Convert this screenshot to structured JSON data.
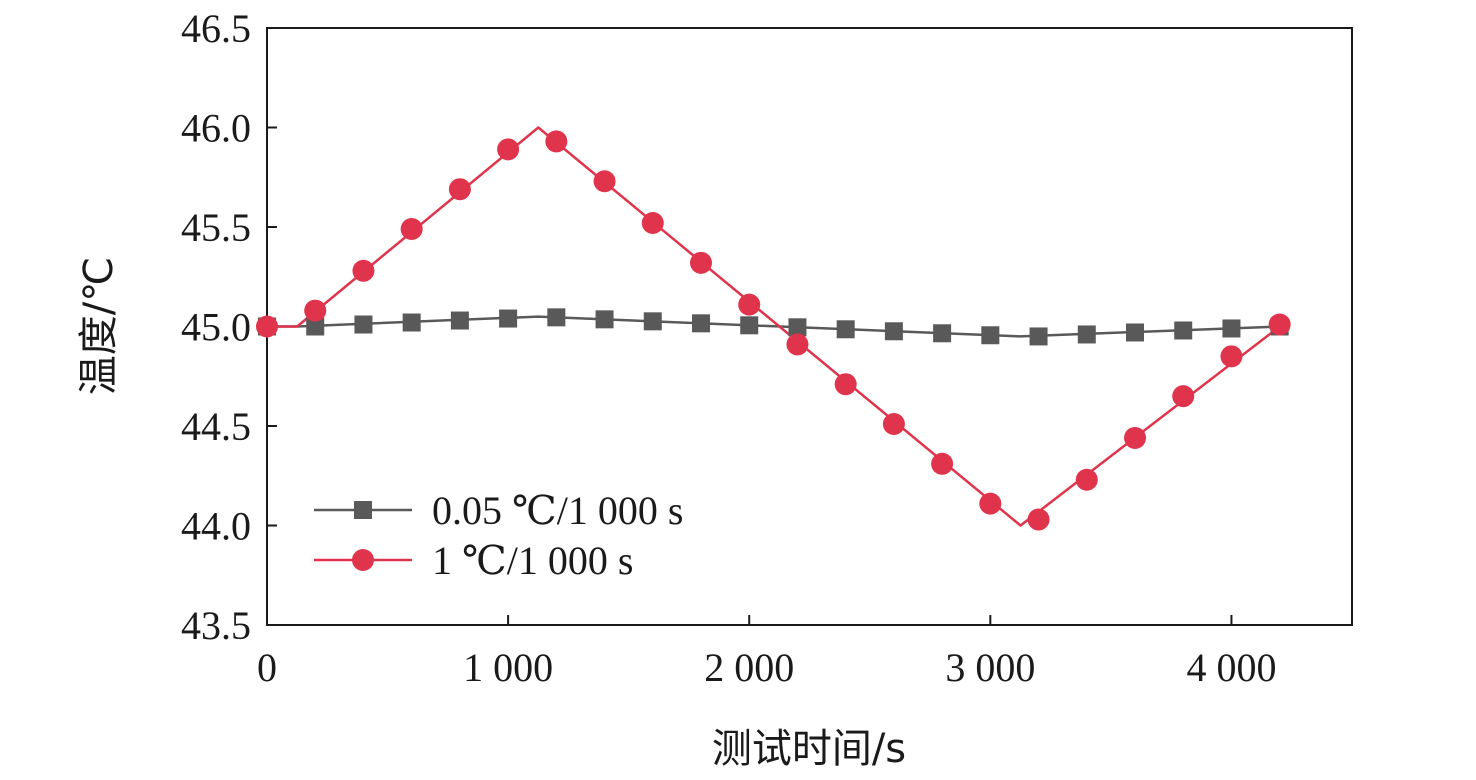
{
  "chart_data": {
    "type": "line",
    "xlabel": "测试时间/s",
    "ylabel": "温度/℃",
    "xlim": [
      0,
      4500
    ],
    "ylim": [
      43.5,
      46.5
    ],
    "x_ticks": [
      0,
      1000,
      2000,
      3000,
      4000
    ],
    "x_tick_labels": [
      "0",
      "1 000",
      "2 000",
      "3 000",
      "4 000"
    ],
    "y_ticks": [
      43.5,
      44.0,
      44.5,
      45.0,
      45.5,
      46.0,
      46.5
    ],
    "y_tick_labels": [
      "43.5",
      "44.0",
      "44.5",
      "45.0",
      "45.5",
      "46.0",
      "46.5"
    ],
    "grid": false,
    "legend_position": "bottom-left",
    "series": [
      {
        "name": "0.05 ℃/1 000 s",
        "color": "#595959",
        "marker": "square",
        "line": {
          "x": [
            0,
            125,
            1125,
            3125,
            4200
          ],
          "y": [
            45.0,
            45.0,
            45.05,
            44.95,
            45.0
          ]
        },
        "markers": {
          "x": [
            0,
            200,
            400,
            600,
            800,
            1000,
            1200,
            1400,
            1600,
            1800,
            2000,
            2200,
            2400,
            2600,
            2800,
            3000,
            3200,
            3400,
            3600,
            3800,
            4000,
            4200
          ],
          "y": [
            45.0,
            45.0,
            45.01,
            45.02,
            45.03,
            45.04,
            45.046,
            45.036,
            45.026,
            45.016,
            45.006,
            44.996,
            44.986,
            44.976,
            44.966,
            44.956,
            44.95,
            44.96,
            44.97,
            44.98,
            44.99,
            45.0
          ]
        }
      },
      {
        "name": "1 ℃/1 000 s",
        "color": "#e0344c",
        "marker": "circle",
        "line": {
          "x": [
            0,
            125,
            1125,
            3125,
            4200
          ],
          "y": [
            45.0,
            45.0,
            46.0,
            44.0,
            45.0
          ]
        },
        "markers": {
          "x": [
            0,
            200,
            400,
            600,
            800,
            1000,
            1200,
            1400,
            1600,
            1800,
            2000,
            2200,
            2400,
            2600,
            2800,
            3000,
            3200,
            3400,
            3600,
            3800,
            4000,
            4200
          ],
          "y": [
            45.0,
            45.08,
            45.28,
            45.49,
            45.69,
            45.89,
            45.93,
            45.73,
            45.52,
            45.32,
            45.11,
            44.91,
            44.71,
            44.51,
            44.31,
            44.11,
            44.03,
            44.23,
            44.44,
            44.65,
            44.85,
            45.01
          ]
        }
      }
    ]
  }
}
